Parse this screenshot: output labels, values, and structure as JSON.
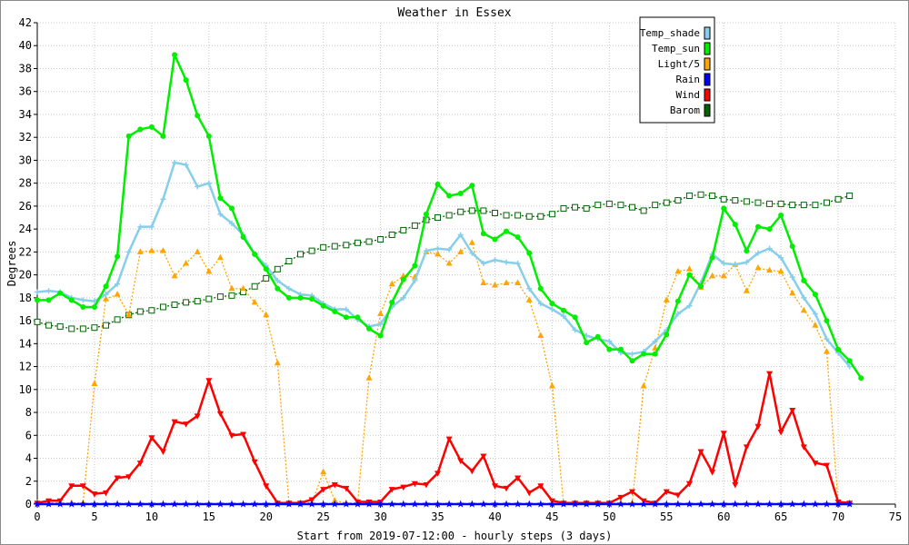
{
  "chart_data": {
    "type": "line",
    "title": "Weather in Essex",
    "xlabel": "Start from 2019-07-12:00 - hourly steps (3 days)",
    "ylabel": "Degrees",
    "xlim": [
      0,
      75
    ],
    "ylim": [
      0,
      42
    ],
    "x_ticks": [
      0,
      5,
      10,
      15,
      20,
      25,
      30,
      35,
      40,
      45,
      50,
      55,
      60,
      65,
      70,
      75
    ],
    "y_ticks": [
      0,
      2,
      4,
      6,
      8,
      10,
      12,
      14,
      16,
      18,
      20,
      22,
      24,
      26,
      28,
      30,
      32,
      34,
      36,
      38,
      40,
      42
    ],
    "grid": true,
    "legend_position": "top-right",
    "series": [
      {
        "name": "Temp_shade",
        "color": "#87ceeb",
        "marker": "cross",
        "values": [
          18.5,
          18.6,
          18.5,
          18.0,
          17.8,
          17.7,
          18.3,
          19.2,
          22.0,
          24.2,
          24.2,
          26.6,
          29.8,
          29.6,
          27.7,
          28.0,
          25.3,
          24.5,
          23.5,
          21.8,
          20.8,
          19.5,
          18.8,
          18.3,
          18.2,
          17.5,
          17.0,
          17.0,
          16.1,
          15.5,
          15.7,
          17.2,
          18.0,
          19.5,
          22.1,
          22.3,
          22.2,
          23.5,
          21.9,
          21.0,
          21.3,
          21.1,
          21.0,
          18.8,
          17.5,
          17.0,
          16.4,
          15.2,
          14.7,
          14.4,
          14.2,
          13.2,
          13.1,
          13.3,
          14.2,
          15.2,
          16.6,
          17.3,
          19.3,
          21.8,
          21.0,
          20.9,
          21.1,
          21.9,
          22.3,
          21.5,
          19.8,
          18.0,
          16.6,
          14.4,
          13.2,
          12.0
        ]
      },
      {
        "name": "Temp_sun",
        "color": "#00ee00",
        "marker": "dot",
        "values": [
          17.8,
          17.8,
          18.4,
          17.8,
          17.2,
          17.2,
          19.0,
          21.6,
          32.1,
          32.7,
          32.9,
          32.1,
          39.2,
          37.0,
          33.9,
          32.1,
          26.7,
          25.8,
          23.3,
          21.8,
          20.5,
          18.8,
          18.0,
          18.0,
          17.9,
          17.3,
          16.8,
          16.3,
          16.3,
          15.3,
          14.7,
          17.6,
          19.6,
          20.8,
          25.3,
          27.9,
          26.9,
          27.1,
          27.8,
          23.6,
          23.1,
          23.8,
          23.3,
          21.9,
          18.8,
          17.5,
          16.9,
          16.3,
          14.1,
          14.6,
          13.5,
          13.5,
          12.5,
          13.1,
          13.1,
          14.8,
          17.7,
          20.0,
          19.0,
          21.5,
          25.8,
          24.4,
          22.1,
          24.2,
          24.0,
          25.2,
          22.5,
          19.5,
          18.3,
          16.0,
          13.5,
          12.5,
          11.0
        ]
      },
      {
        "name": "Light/5",
        "color": "#ffa500",
        "marker": "triangle-up",
        "values": [
          0.1,
          0.1,
          0.1,
          0.1,
          0.1,
          10.5,
          17.9,
          18.3,
          16.5,
          22.0,
          22.1,
          22.1,
          19.9,
          21.0,
          22.0,
          20.3,
          21.5,
          18.8,
          18.8,
          17.6,
          16.5,
          12.3,
          0.1,
          0.1,
          0.1,
          2.8,
          0.3,
          0.1,
          0.1,
          11.0,
          16.6,
          19.2,
          19.9,
          19.8,
          22.0,
          21.8,
          21.0,
          22.0,
          22.8,
          19.3,
          19.1,
          19.3,
          19.3,
          17.8,
          14.7,
          10.3,
          0.1,
          0.1,
          0.1,
          0.1,
          0.1,
          0.1,
          0.1,
          10.3,
          13.6,
          17.8,
          20.3,
          20.5,
          18.9,
          19.9,
          19.9,
          20.9,
          18.6,
          20.6,
          20.4,
          20.3,
          18.4,
          16.9,
          15.6,
          13.3,
          0.1,
          0.1
        ]
      },
      {
        "name": "Rain",
        "color": "#0000ff",
        "marker": "star",
        "values": [
          0,
          0,
          0,
          0,
          0,
          0,
          0,
          0,
          0,
          0,
          0,
          0,
          0,
          0,
          0,
          0,
          0,
          0,
          0,
          0,
          0,
          0,
          0,
          0,
          0,
          0,
          0,
          0,
          0,
          0,
          0,
          0,
          0,
          0,
          0,
          0,
          0,
          0,
          0,
          0,
          0,
          0,
          0,
          0,
          0,
          0,
          0,
          0,
          0,
          0,
          0,
          0,
          0,
          0,
          0,
          0,
          0,
          0,
          0,
          0,
          0,
          0,
          0,
          0,
          0,
          0,
          0,
          0,
          0,
          0,
          0,
          0
        ]
      },
      {
        "name": "Wind",
        "color": "#ff0000",
        "marker": "triangle-down",
        "values": [
          0.1,
          0.3,
          0.3,
          1.6,
          1.6,
          0.9,
          1.0,
          2.3,
          2.4,
          3.6,
          5.8,
          4.6,
          7.2,
          7.0,
          7.7,
          10.8,
          7.9,
          6.0,
          6.1,
          3.7,
          1.6,
          0.1,
          0.1,
          0.1,
          0.4,
          1.3,
          1.7,
          1.4,
          0.2,
          0.2,
          0.2,
          1.3,
          1.5,
          1.8,
          1.7,
          2.7,
          5.7,
          3.8,
          2.9,
          4.2,
          1.6,
          1.4,
          2.3,
          1.0,
          1.6,
          0.3,
          0.1,
          0.1,
          0.1,
          0.1,
          0.1,
          0.6,
          1.1,
          0.3,
          0.1,
          1.1,
          0.8,
          1.8,
          4.6,
          2.8,
          6.2,
          1.7,
          5.0,
          6.8,
          11.4,
          6.3,
          8.2,
          5.0,
          3.6,
          3.4,
          0.2,
          0.1
        ]
      },
      {
        "name": "Barom",
        "color": "#006400",
        "marker": "square-open",
        "values": [
          15.9,
          15.6,
          15.5,
          15.3,
          15.3,
          15.4,
          15.6,
          16.1,
          16.5,
          16.8,
          16.9,
          17.2,
          17.4,
          17.6,
          17.7,
          17.9,
          18.1,
          18.2,
          18.5,
          19.0,
          19.7,
          20.5,
          21.2,
          21.8,
          22.1,
          22.4,
          22.5,
          22.6,
          22.8,
          22.9,
          23.1,
          23.5,
          23.9,
          24.3,
          24.8,
          25.0,
          25.2,
          25.5,
          25.6,
          25.6,
          25.4,
          25.2,
          25.2,
          25.1,
          25.1,
          25.3,
          25.8,
          25.9,
          25.8,
          26.1,
          26.2,
          26.1,
          25.9,
          25.6,
          26.1,
          26.3,
          26.5,
          26.9,
          27.0,
          26.9,
          26.6,
          26.5,
          26.4,
          26.3,
          26.2,
          26.2,
          26.1,
          26.1,
          26.1,
          26.3,
          26.6,
          26.9
        ]
      }
    ]
  }
}
